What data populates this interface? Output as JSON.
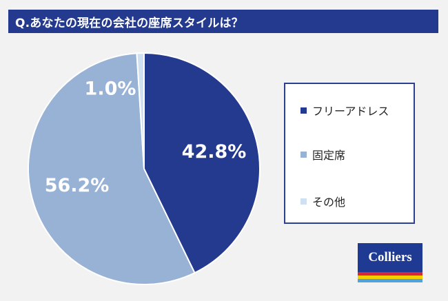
{
  "title": "Q.あなたの現在の会社の座席スタイルは？",
  "chart_data": {
    "type": "pie",
    "title": "Q.あなたの現在の会社の座席スタイルは？",
    "categories": [
      "フリーアドレス",
      "固定席",
      "その他"
    ],
    "values": [
      42.8,
      56.2,
      1.0
    ],
    "labels": [
      "42.8%",
      "56.2%",
      "1.0%"
    ],
    "colors": [
      "#243a8e",
      "#98b2d6",
      "#cfe0f0"
    ],
    "start": "12 o'clock, clockwise",
    "legend_placement": "right"
  },
  "legend": [
    {
      "label": "フリーアドレス",
      "color": "#243a8e"
    },
    {
      "label": "固定席",
      "color": "#98b2d6"
    },
    {
      "label": "その他",
      "color": "#cfe0f0"
    }
  ],
  "logo": {
    "text": "Colliers",
    "colors": {
      "background": "#1f3a93",
      "stripe_red": "#d7263d",
      "stripe_yellow": "#f5d000",
      "stripe_blue": "#4ea3dc"
    }
  }
}
